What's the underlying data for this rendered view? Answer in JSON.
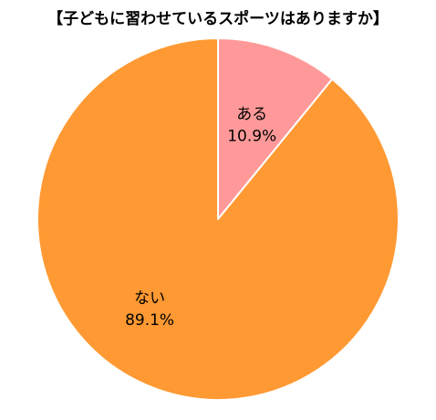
{
  "chart_data": {
    "type": "pie",
    "title": "【子どもに習わせているスポーツはありますか】",
    "slices": [
      {
        "label": "ある",
        "percent_label": "10.9%",
        "value": 10.9,
        "color": "#ff9999"
      },
      {
        "label": "ない",
        "percent_label": "89.1%",
        "value": 89.1,
        "color": "#ff9933"
      }
    ],
    "start_angle": "12 o'clock",
    "direction": "clockwise",
    "slice_border_color": "#ffffff",
    "legend": "none"
  }
}
